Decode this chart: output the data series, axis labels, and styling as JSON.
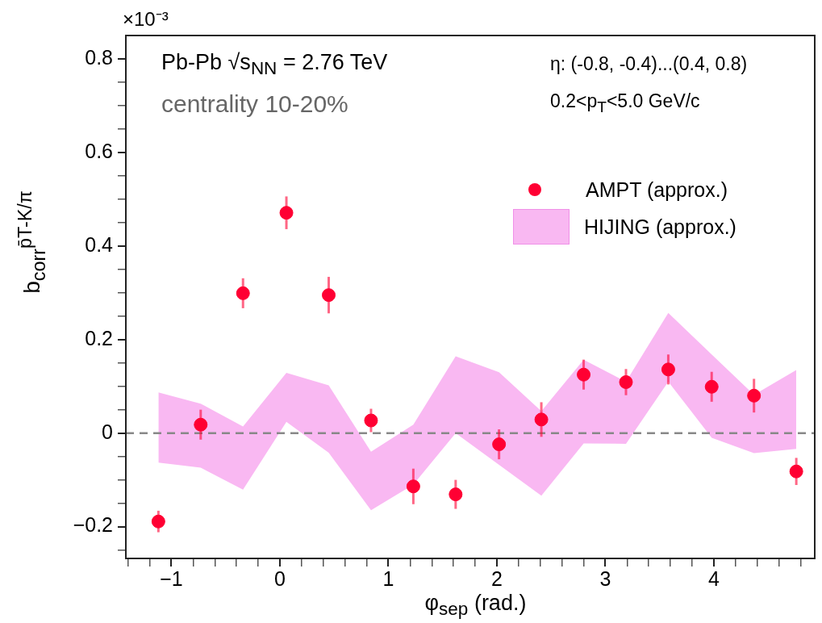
{
  "chart_data": {
    "type": "scatter",
    "xlabel": "φ$_{sep}$ (rad.)",
    "ylabel": "b$_{corr}$$^{p̄T-K/π}$",
    "annotations": [
      "×10⁻³",
      "Pb-Pb √s$_{NN}$ = 2.76 TeV",
      "centrality 10-20%",
      "η: (-0.8, -0.4)...(0.4, 0.8)",
      "0.2<p$_{T}$<5.0 GeV/c"
    ],
    "x": [
      -1.12,
      -0.73,
      -0.34,
      0.06,
      0.45,
      0.84,
      1.23,
      1.62,
      2.02,
      2.41,
      2.8,
      3.19,
      3.58,
      3.98,
      4.37,
      4.76
    ],
    "series": [
      {
        "name": "AMPT (approx.)",
        "color": "#ff0033",
        "values": [
          -0.189,
          0.018,
          0.299,
          0.471,
          0.295,
          0.027,
          -0.114,
          -0.131,
          -0.024,
          0.029,
          0.125,
          0.109,
          0.136,
          0.099,
          0.08,
          -0.082
        ],
        "errors": [
          0.023,
          0.032,
          0.032,
          0.035,
          0.039,
          0.025,
          0.038,
          0.031,
          0.032,
          0.037,
          0.032,
          0.028,
          0.032,
          0.032,
          0.036,
          0.029
        ]
      },
      {
        "name": "HIJING (approx.)",
        "type": "area",
        "color": "#f9b8f2",
        "values": [
          null,
          null,
          null,
          null,
          null,
          null,
          null,
          null,
          null,
          null,
          null,
          null,
          null,
          null,
          null,
          null
        ],
        "lower": [
          -0.063,
          -0.074,
          -0.121,
          0.024,
          -0.042,
          -0.165,
          -0.11,
          0.0,
          -0.068,
          -0.134,
          -0.022,
          -0.023,
          0.11,
          -0.01,
          -0.043,
          -0.034
        ],
        "upper": [
          0.087,
          0.063,
          0.014,
          0.129,
          0.102,
          -0.04,
          0.018,
          0.164,
          0.13,
          0.047,
          0.157,
          0.11,
          0.257,
          0.168,
          0.082,
          0.135
        ]
      }
    ],
    "xlim": [
      -1.42,
      4.93
    ],
    "ylim": [
      -0.268,
      0.85
    ],
    "xticks": [
      {
        "value": -1.4,
        "label": null
      },
      {
        "value": -1.2,
        "label": null
      },
      {
        "value": -1,
        "label": "−1"
      },
      {
        "value": -0.8,
        "label": null
      },
      {
        "value": -0.6,
        "label": null
      },
      {
        "value": -0.4,
        "label": null
      },
      {
        "value": -0.2,
        "label": null
      },
      0,
      {
        "value": 0.2,
        "label": null
      },
      {
        "value": 0.4,
        "label": null
      },
      {
        "value": 0.6,
        "label": null
      },
      {
        "value": 0.8,
        "label": null
      },
      1,
      {
        "value": 1.2,
        "label": null
      },
      {
        "value": 1.4,
        "label": null
      },
      {
        "value": 1.6,
        "label": null
      },
      {
        "value": 1.8,
        "label": null
      },
      2,
      {
        "value": 2.2,
        "label": null
      },
      {
        "value": 2.4,
        "label": null
      },
      {
        "value": 2.6,
        "label": null
      },
      {
        "value": 2.8,
        "label": null
      },
      3,
      {
        "value": 3.2,
        "label": null
      },
      {
        "value": 3.4,
        "label": null
      },
      {
        "value": 3.6,
        "label": null
      },
      {
        "value": 3.8,
        "label": null
      },
      4,
      {
        "value": 4.2,
        "label": null
      },
      {
        "value": 4.4,
        "label": null
      },
      {
        "value": 4.6,
        "label": null
      },
      {
        "value": 4.8,
        "label": null
      }
    ],
    "yticks": [
      {
        "value": -0.25,
        "label": null
      },
      {
        "value": -0.2,
        "label": "−0.2"
      },
      {
        "value": -0.15,
        "label": null
      },
      {
        "value": -0.1,
        "label": null
      },
      {
        "value": -0.05,
        "label": null
      },
      0,
      {
        "value": 0.05,
        "label": null
      },
      {
        "value": 0.1,
        "label": null
      },
      {
        "value": 0.15,
        "label": null
      },
      0.2,
      {
        "value": 0.25,
        "label": null
      },
      {
        "value": 0.3,
        "label": null
      },
      {
        "value": 0.35,
        "label": null
      },
      0.4,
      {
        "value": 0.45,
        "label": null
      },
      {
        "value": 0.5,
        "label": null
      },
      {
        "value": 0.55,
        "label": null
      },
      0.6,
      {
        "value": 0.65,
        "label": null
      },
      {
        "value": 0.7,
        "label": null
      },
      {
        "value": 0.75,
        "label": null
      },
      0.8
    ],
    "ref_lines": [
      {
        "axis": "y",
        "value": 0,
        "color": "#888888",
        "line_style": "dashed"
      }
    ],
    "legend": "top right",
    "marker": "circle"
  }
}
